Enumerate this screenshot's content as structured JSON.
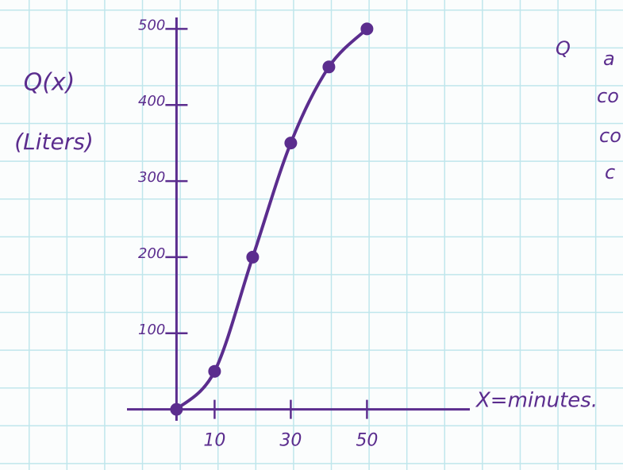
{
  "chart_data": {
    "type": "line",
    "y_label_lines": [
      "Q(x)",
      "(Liters)"
    ],
    "x_label": "X=minutes.",
    "annotations": [
      "Q",
      "a",
      "co",
      "co",
      "c"
    ],
    "x": [
      0,
      10,
      20,
      30,
      40,
      50
    ],
    "series": [
      {
        "color": "#5b2d8e",
        "values": [
          0,
          50,
          200,
          350,
          450,
          500
        ]
      }
    ],
    "xlim": [
      -13,
      77
    ],
    "ylim": [
      -15,
      515
    ],
    "xticks": [
      10,
      30,
      50
    ],
    "yticks": [
      100,
      200,
      300,
      400,
      500
    ]
  }
}
